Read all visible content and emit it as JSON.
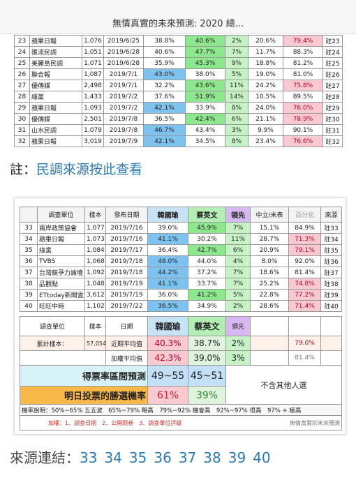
{
  "header": {
    "title": "無情真實的未來預測: 2020 總..."
  },
  "table1": {
    "rows": [
      [
        "23",
        "蘋果日報",
        "1,076",
        "2019/6/25",
        "38.8%",
        "40.6%",
        "2%",
        "20.6%",
        "79.4%",
        "註23"
      ],
      [
        "24",
        "匯流民調",
        "1,051",
        "2019/6/28",
        "40.6%",
        "47.7%",
        "7%",
        "11.7%",
        "88.3%",
        "註24"
      ],
      [
        "25",
        "美麗島民調",
        "1,071",
        "2019/6/28",
        "35.9%",
        "45.3%",
        "9%",
        "18.8%",
        "81.2%",
        "註25"
      ],
      [
        "26",
        "聯合報",
        "1,087",
        "2019/7/1",
        "43.0%",
        "38.0%",
        "5%",
        "19.0%",
        "81.0%",
        "註26"
      ],
      [
        "27",
        "優傳媒",
        "2,498",
        "2019/7/1",
        "32.2%",
        "43.6%",
        "11%",
        "24.2%",
        "75.8%",
        "註27"
      ],
      [
        "28",
        "綠黨",
        "1,433",
        "2019/7/2",
        "37.6%",
        "51.9%",
        "14%",
        "10.5%",
        "89.5%",
        "註28"
      ],
      [
        "29",
        "蘋果日報",
        "1,093",
        "2019/7/2",
        "42.1%",
        "33.9%",
        "8%",
        "24.0%",
        "76.0%",
        "註29"
      ],
      [
        "30",
        "優傳媒",
        "2,501",
        "2019/7/8",
        "36.5%",
        "42.4%",
        "6%",
        "21.1%",
        "78.9%",
        "註30"
      ],
      [
        "31",
        "山水民調",
        "1,079",
        "2019/7/8",
        "46.7%",
        "43.4%",
        "3%",
        "9.9%",
        "90.1%",
        "註31"
      ],
      [
        "32",
        "蘋果日報",
        "3,019",
        "2019/7/9",
        "42.1%",
        "34.5%",
        "8%",
        "23.4%",
        "76.6%",
        "註32"
      ]
    ]
  },
  "note": {
    "prefix": "註：",
    "link": "民調來源按此查看"
  },
  "table2": {
    "columns": [
      "調查單位",
      "樣本",
      "發布日期",
      "韓國瑜",
      "蔡英文",
      "領先",
      "中立/未表",
      "百分化",
      "來源"
    ],
    "rows": [
      [
        "33",
        "兩岸政策協會",
        "1,077",
        "2019/7/16",
        "39.0%",
        "45.9%",
        "7%",
        "15.1%",
        "84.9%",
        "註33"
      ],
      [
        "34",
        "蘋果日報",
        "1,073",
        "2019/7/16",
        "41.1%",
        "30.2%",
        "11%",
        "28.7%",
        "71.3%",
        "註34"
      ],
      [
        "35",
        "綠黨",
        "1,084",
        "2019/7/17",
        "36.4%",
        "42.7%",
        "6%",
        "20.9%",
        "79.1%",
        "註35"
      ],
      [
        "36",
        "TVBS",
        "1,068",
        "2019/7/18",
        "48.0%",
        "44.0%",
        "4%",
        "8.0%",
        "92.0%",
        "註36"
      ],
      [
        "37",
        "台灣競爭力論壇",
        "1,092",
        "2019/7/18",
        "44.2%",
        "37.2%",
        "7%",
        "18.6%",
        "81.4%",
        "註37"
      ],
      [
        "38",
        "品觀點",
        "1,048",
        "2019/7/19",
        "41.1%",
        "33.7%",
        "7%",
        "25.2%",
        "74.8%",
        "註38"
      ],
      [
        "39",
        "ETtoday新聞雲",
        "3,612",
        "2019/7/19",
        "36.0%",
        "41.2%",
        "5%",
        "22.8%",
        "77.2%",
        "註39"
      ],
      [
        "40",
        "旺旺中時",
        "1,102",
        "2019/7/22",
        "36.5%",
        "34.9%",
        "2%",
        "28.6%",
        "71.4%",
        "註40"
      ]
    ]
  },
  "summary": {
    "columns": [
      "調查單位",
      "樣本",
      "日期",
      "韓國瑜",
      "蔡英文",
      "領先"
    ],
    "recent": {
      "sample_label": "累計樣本：",
      "sample": "57,054",
      "label": "近期平均值",
      "values": [
        "40.3%",
        "38.7%",
        "2%"
      ],
      "percent": "79.0%"
    },
    "weighted": {
      "label": "加權平均值",
      "values": [
        "42.3%",
        "39.0%",
        "3%"
      ],
      "percent": "81.4%"
    },
    "range": {
      "label": "得票率區間預測",
      "values": [
        "49~55",
        "45~51"
      ],
      "note": "不含其他人選"
    },
    "win": {
      "label": "明日投票的勝選機率",
      "values": [
        "61%",
        "39%"
      ]
    },
    "legend": "機率說明：50%~65% 五五波　65%~79% 略高　79%~92% 機會高　92%~97% 很高　97% + 極高",
    "weights": {
      "label": "加權：1、調查日期　2、公開問卷　3、調查單位評級",
      "brand": "無情真實的未來預測"
    }
  },
  "sources": {
    "label": "來源連結：",
    "links": [
      "33",
      "34",
      "35",
      "36",
      "37",
      "38",
      "39",
      "40"
    ]
  }
}
